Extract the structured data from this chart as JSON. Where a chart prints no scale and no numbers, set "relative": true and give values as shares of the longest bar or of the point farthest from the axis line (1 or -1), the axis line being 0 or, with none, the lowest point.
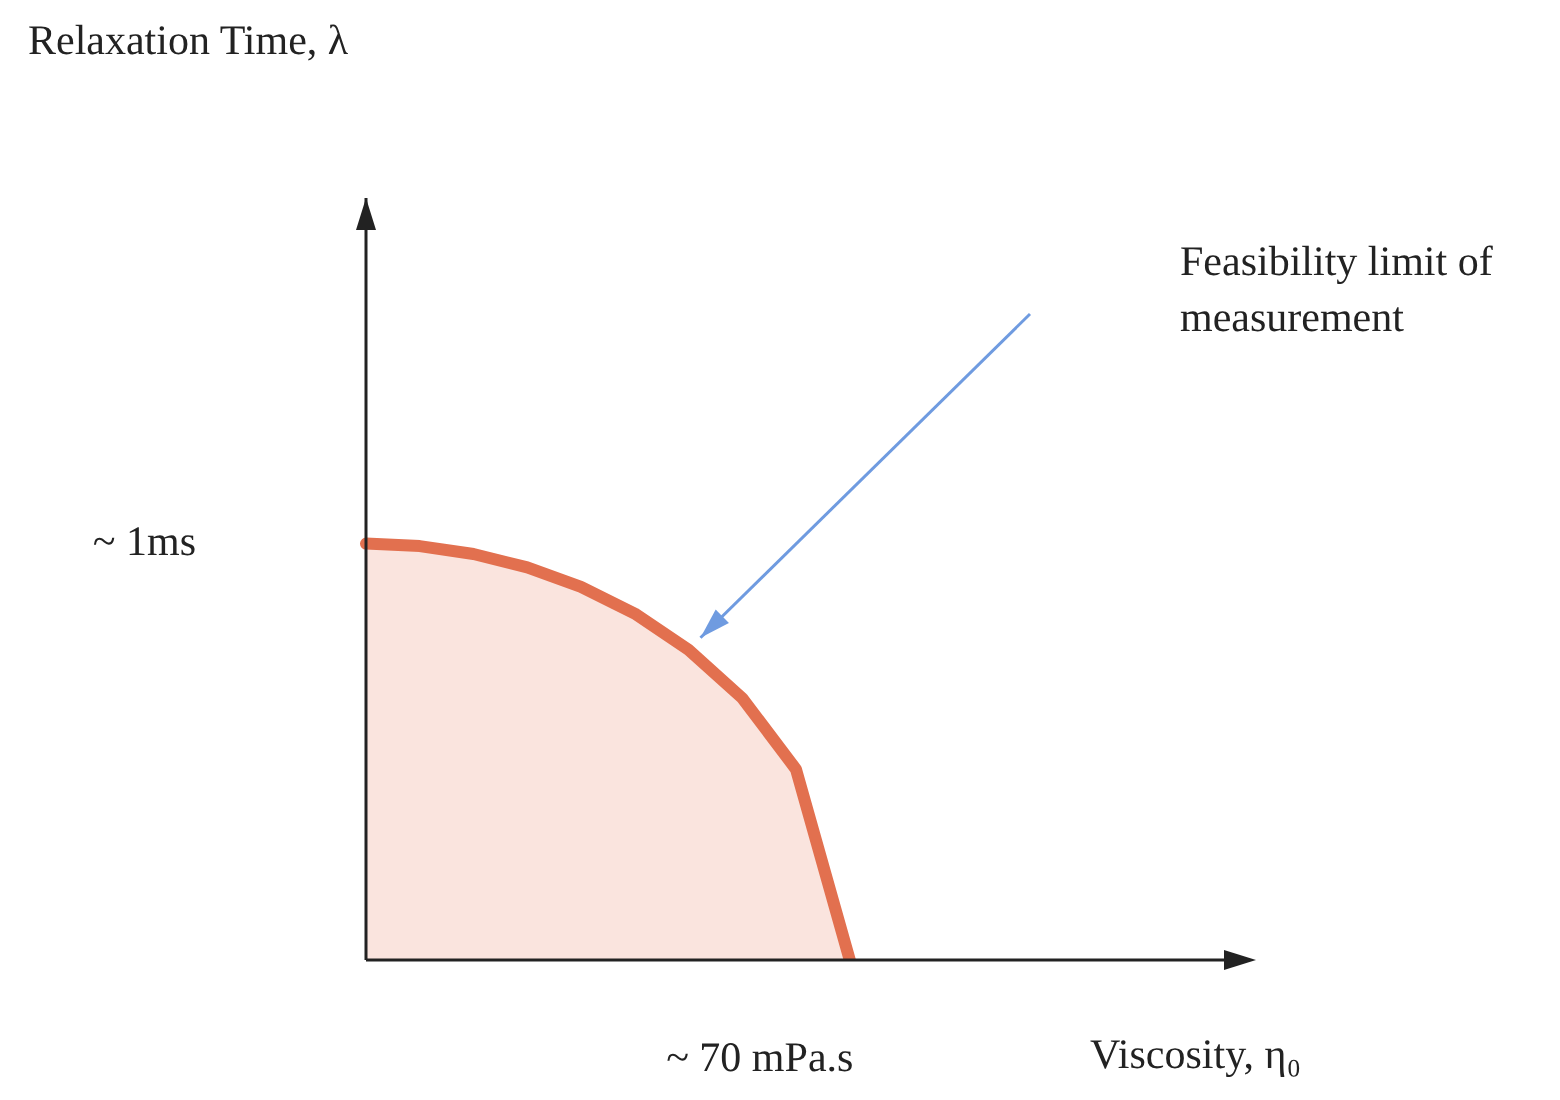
{
  "chart_data": {
    "type": "area",
    "relative": true,
    "xlabel": "Viscosity, η₀",
    "categories": [
      null,
      null,
      null,
      null,
      null,
      null,
      null,
      null,
      null,
      null,
      null,
      null,
      null,
      null,
      null,
      null,
      null
    ],
    "series": [
      {
        "color": "#e2704f",
        "values": [
          1,
          0.994,
          0.975,
          0.943,
          0.896,
          0.832,
          0.745,
          0.629,
          0.458,
          0,
          null,
          null,
          null,
          null,
          null,
          null,
          null
        ]
      }
    ],
    "annotations": [
      "~ 1ms",
      "~ 70 mPa.s",
      "Feasibility limit of measurement",
      "Relaxation Time, λ"
    ],
    "legend": false
  }
}
